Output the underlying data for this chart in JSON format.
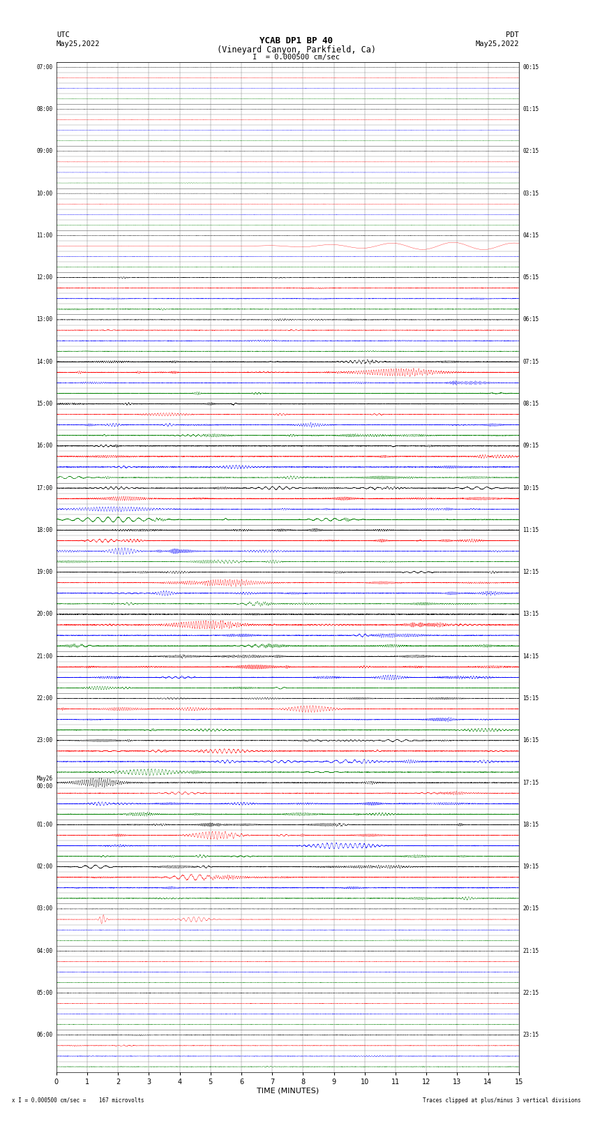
{
  "title_line1": "YCAB DP1 BP 40",
  "title_line2": "(Vineyard Canyon, Parkfield, Ca)",
  "scale_text": "I  = 0.000500 cm/sec",
  "utc_label": "UTC",
  "date_left": "May25,2022",
  "date_right": "May25,2022",
  "pdt_label": "PDT",
  "bottom_left": "x I = 0.000500 cm/sec =    167 microvolts",
  "bottom_right": "Traces clipped at plus/minus 3 vertical divisions",
  "xlabel": "TIME (MINUTES)",
  "xlim": [
    0,
    15
  ],
  "xticks": [
    0,
    1,
    2,
    3,
    4,
    5,
    6,
    7,
    8,
    9,
    10,
    11,
    12,
    13,
    14,
    15
  ],
  "bg_color": "#ffffff",
  "trace_colors": [
    "black",
    "red",
    "blue",
    "green"
  ],
  "left_times": [
    "07:00",
    "",
    "",
    "",
    "08:00",
    "",
    "",
    "",
    "09:00",
    "",
    "",
    "",
    "10:00",
    "",
    "",
    "",
    "11:00",
    "",
    "",
    "",
    "12:00",
    "",
    "",
    "",
    "13:00",
    "",
    "",
    "",
    "14:00",
    "",
    "",
    "",
    "15:00",
    "",
    "",
    "",
    "16:00",
    "",
    "",
    "",
    "17:00",
    "",
    "",
    "",
    "18:00",
    "",
    "",
    "",
    "19:00",
    "",
    "",
    "",
    "20:00",
    "",
    "",
    "",
    "21:00",
    "",
    "",
    "",
    "22:00",
    "",
    "",
    "",
    "23:00",
    "",
    "",
    "",
    "May26\n00:00",
    "",
    "",
    "",
    "01:00",
    "",
    "",
    "",
    "02:00",
    "",
    "",
    "",
    "03:00",
    "",
    "",
    "",
    "04:00",
    "",
    "",
    "",
    "05:00",
    "",
    "",
    "",
    "06:00",
    "",
    "",
    ""
  ],
  "right_times": [
    "00:15",
    "",
    "",
    "",
    "01:15",
    "",
    "",
    "",
    "02:15",
    "",
    "",
    "",
    "03:15",
    "",
    "",
    "",
    "04:15",
    "",
    "",
    "",
    "05:15",
    "",
    "",
    "",
    "06:15",
    "",
    "",
    "",
    "07:15",
    "",
    "",
    "",
    "08:15",
    "",
    "",
    "",
    "09:15",
    "",
    "",
    "",
    "10:15",
    "",
    "",
    "",
    "11:15",
    "",
    "",
    "",
    "12:15",
    "",
    "",
    "",
    "13:15",
    "",
    "",
    "",
    "14:15",
    "",
    "",
    "",
    "15:15",
    "",
    "",
    "",
    "16:15",
    "",
    "",
    "",
    "17:15",
    "",
    "",
    "",
    "18:15",
    "",
    "",
    "",
    "19:15",
    "",
    "",
    "",
    "20:15",
    "",
    "",
    "",
    "21:15",
    "",
    "",
    "",
    "22:15",
    "",
    "",
    "",
    "23:15",
    "",
    "",
    ""
  ],
  "n_rows": 96,
  "fig_width": 8.5,
  "fig_height": 16.13
}
